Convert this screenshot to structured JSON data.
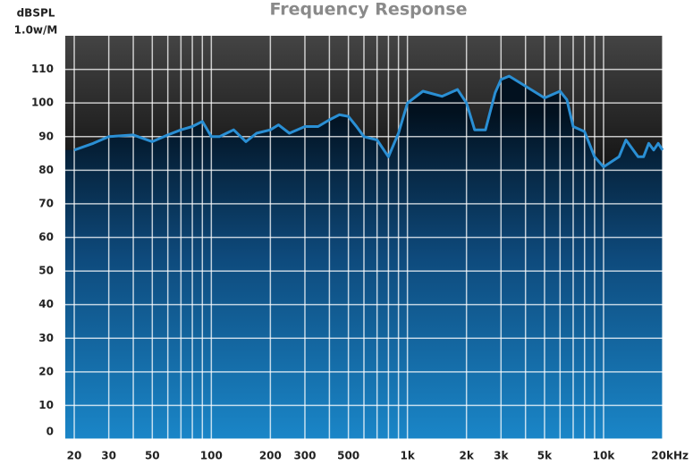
{
  "chart_data": {
    "type": "line",
    "title": "Frequency Response",
    "y_label": [
      "dBSPL",
      "1.0w/M"
    ],
    "x": [
      20,
      25,
      30,
      40,
      50,
      60,
      70,
      80,
      90,
      100,
      110,
      130,
      150,
      170,
      200,
      220,
      250,
      300,
      350,
      400,
      450,
      500,
      550,
      600,
      700,
      800,
      900,
      1000,
      1200,
      1500,
      1800,
      2000,
      2200,
      2500,
      2800,
      3000,
      3300,
      4000,
      5000,
      6000,
      6500,
      7000,
      8000,
      9000,
      10000,
      12000,
      13000,
      15000,
      16000,
      17000,
      18000,
      19000,
      20000
    ],
    "series": [
      {
        "name": "Response",
        "color": "#2a8fd4",
        "values": [
          86,
          88,
          90,
          90.5,
          88.5,
          90.5,
          92,
          93,
          94.5,
          90,
          90,
          92,
          88.5,
          91,
          92,
          93.5,
          91,
          93,
          93,
          95,
          96.5,
          96,
          93,
          90,
          89,
          84,
          91,
          100,
          103.5,
          102,
          104,
          100,
          92,
          92,
          103,
          107,
          108,
          105,
          101.5,
          103.5,
          101,
          93,
          91.5,
          84,
          81,
          84,
          89,
          84,
          84,
          88,
          86,
          88,
          86
        ]
      }
    ],
    "xscale": "log",
    "xlim": [
      18,
      20000
    ],
    "xticks": [
      20,
      30,
      50,
      100,
      200,
      300,
      500,
      {
        "value": 1000,
        "label": "1k"
      },
      {
        "value": 2000,
        "label": "2k"
      },
      {
        "value": 3000,
        "label": "3k"
      },
      {
        "value": 5000,
        "label": "5k"
      },
      {
        "value": 10000,
        "label": "10k"
      },
      {
        "value": 20000,
        "label": "20kHz"
      }
    ],
    "x_minor_ticks": [
      40,
      60,
      70,
      80,
      90,
      400,
      600,
      700,
      800,
      900,
      4000,
      6000,
      7000,
      8000,
      9000
    ],
    "ylim": [
      0,
      120
    ],
    "yticks": [
      0,
      10,
      20,
      30,
      40,
      50,
      60,
      70,
      80,
      90,
      100,
      110
    ],
    "grid": true
  }
}
